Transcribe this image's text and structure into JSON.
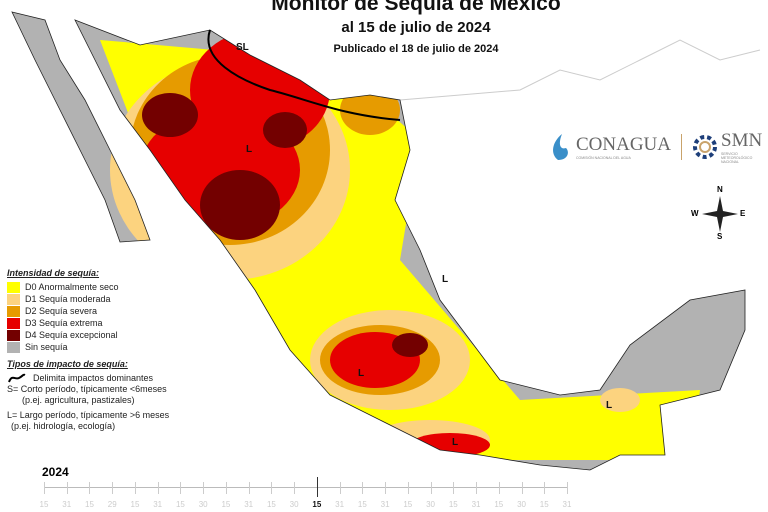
{
  "title": {
    "line1": "Monitor de Sequía de México",
    "line2": "al 15 de julio de 2024",
    "line3": "Publicado el 18 de julio de 2024"
  },
  "legend": {
    "intensity_title": "Intensidad de sequía:",
    "items": [
      {
        "label": "D0 Anormalmente seco",
        "color": "#ffff00"
      },
      {
        "label": "D1 Sequía moderada",
        "color": "#fcd37f"
      },
      {
        "label": "D2 Sequía severa",
        "color": "#e69b00"
      },
      {
        "label": "D3 Sequía extrema",
        "color": "#e60000"
      },
      {
        "label": "D4 Sequía excepcional",
        "color": "#730000"
      },
      {
        "label": "Sin sequía",
        "color": "#b2b2b2"
      }
    ],
    "impact_title": "Tipos de impacto de sequía:",
    "impact_line": "Delimita impactos dominantes",
    "short_1": "S= Corto período, típicamente <6meses",
    "short_2": "(p.ej. agricultura, pastizales)",
    "long_1": "L= Largo período, típicamente >6 meses",
    "long_2": "(p.ej. hidrología, ecología)"
  },
  "map_labels": {
    "sl": "SL",
    "l": "L"
  },
  "logos": {
    "conagua": "CONAGUA",
    "conagua_sub": "COMISIÓN NACIONAL DEL AGUA",
    "smn": "SMN",
    "smn_sub": "SERVICIO METEOROLÓGICO NACIONAL"
  },
  "compass": {
    "n": "N",
    "s": "S",
    "e": "E",
    "w": "W"
  },
  "timeline": {
    "year": "2024",
    "labels": [
      "15",
      "31",
      "15",
      "29",
      "15",
      "31",
      "15",
      "30",
      "15",
      "31",
      "15",
      "30",
      "15",
      "31",
      "15",
      "31",
      "15",
      "30",
      "15",
      "31",
      "15",
      "30",
      "15",
      "31"
    ],
    "current_index": 12
  }
}
